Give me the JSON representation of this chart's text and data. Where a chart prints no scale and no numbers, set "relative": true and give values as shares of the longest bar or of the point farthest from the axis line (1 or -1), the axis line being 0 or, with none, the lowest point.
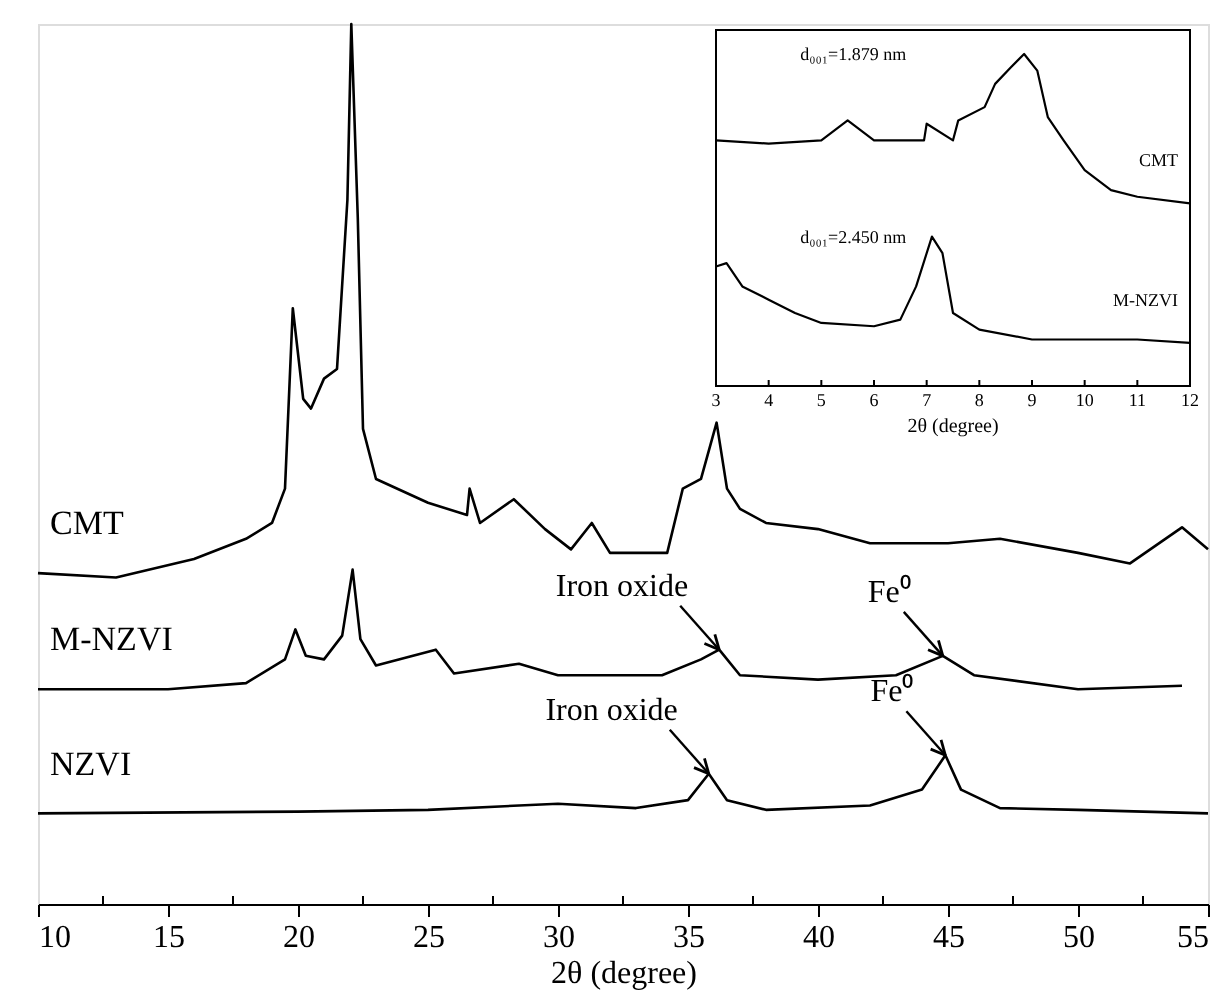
{
  "chart_data": [
    {
      "type": "line",
      "relative": true,
      "xlabel": "2θ (degree)",
      "xlim": [
        10,
        55
      ],
      "xticks": [
        10,
        {
          "value": 12.5,
          "label": null
        },
        15,
        {
          "value": 17.5,
          "label": null
        },
        20,
        {
          "value": 22.5,
          "label": null
        },
        25,
        {
          "value": 27.5,
          "label": null
        },
        30,
        {
          "value": 32.5,
          "label": null
        },
        35,
        {
          "value": 37.5,
          "label": null
        },
        40,
        {
          "value": 42.5,
          "label": null
        },
        45,
        {
          "value": 47.5,
          "label": null
        },
        50,
        {
          "value": 52.5,
          "label": null
        },
        55
      ],
      "grid": false,
      "series": [
        {
          "name": "CMT",
          "color": "#000000",
          "x": [
            10,
            13,
            16,
            18,
            19,
            19.5,
            19.8,
            20.2,
            20.5,
            21,
            21.5,
            21.9,
            22.05,
            22.3,
            22.5,
            23,
            25,
            26.5,
            26.6,
            27,
            28.3,
            29.5,
            30.5,
            31.3,
            32,
            33,
            34.2,
            34.8,
            35.5,
            36.1,
            36.5,
            37,
            38,
            40,
            42,
            45,
            47,
            50,
            52,
            54,
            55
          ],
          "values": [
            0.376,
            0.371,
            0.392,
            0.415,
            0.433,
            0.472,
            0.677,
            0.574,
            0.563,
            0.597,
            0.608,
            0.8,
            1.0,
            0.779,
            0.54,
            0.483,
            0.456,
            0.442,
            0.472,
            0.433,
            0.46,
            0.426,
            0.403,
            0.433,
            0.399,
            0.399,
            0.399,
            0.472,
            0.483,
            0.547,
            0.472,
            0.449,
            0.433,
            0.426,
            0.41,
            0.41,
            0.415,
            0.399,
            0.387,
            0.428,
            0.403
          ]
        },
        {
          "name": "M-NZVI",
          "color": "#000000",
          "x": [
            10,
            15,
            18,
            19.5,
            19.9,
            20.3,
            21,
            21.7,
            22.1,
            22.4,
            23,
            25.3,
            26,
            28.5,
            30,
            32,
            34,
            35.5,
            36.2,
            37,
            40,
            43,
            44.8,
            46,
            50,
            54
          ],
          "values": [
            0.244,
            0.244,
            0.251,
            0.278,
            0.312,
            0.282,
            0.278,
            0.305,
            0.38,
            0.301,
            0.271,
            0.289,
            0.262,
            0.273,
            0.26,
            0.26,
            0.26,
            0.278,
            0.289,
            0.26,
            0.255,
            0.26,
            0.282,
            0.26,
            0.244,
            0.248
          ]
        },
        {
          "name": "NZVI",
          "color": "#000000",
          "x": [
            10,
            20,
            25,
            30,
            33,
            35,
            35.8,
            36.5,
            38,
            42,
            44,
            44.9,
            45.5,
            47,
            50,
            55
          ],
          "values": [
            0.103,
            0.105,
            0.107,
            0.114,
            0.109,
            0.118,
            0.148,
            0.118,
            0.107,
            0.112,
            0.13,
            0.169,
            0.13,
            0.109,
            0.107,
            0.103
          ]
        }
      ],
      "annotations": [
        {
          "text": "Iron oxide",
          "x": 36.2,
          "y": 0.289
        },
        {
          "text": "Fe⁰",
          "x": 44.8,
          "y": 0.282
        },
        {
          "text": "Iron oxide",
          "x": 35.8,
          "y": 0.148
        },
        {
          "text": "Fe⁰",
          "x": 44.9,
          "y": 0.169
        }
      ]
    },
    {
      "type": "line",
      "relative": true,
      "xlabel": "2θ (degree)",
      "xlim": [
        3,
        12
      ],
      "xticks": [
        3,
        4,
        5,
        6,
        7,
        8,
        9,
        10,
        11,
        12
      ],
      "grid": false,
      "series": [
        {
          "name": "CMT",
          "color": "#000000",
          "x": [
            3,
            4,
            5,
            5.5,
            6,
            6.95,
            7,
            7.5,
            7.6,
            8.1,
            8.3,
            8.6,
            8.85,
            9.1,
            9.3,
            9.6,
            10,
            10.5,
            11,
            12
          ],
          "values": [
            0.74,
            0.73,
            0.74,
            0.8,
            0.74,
            0.74,
            0.79,
            0.74,
            0.8,
            0.84,
            0.91,
            0.96,
            1.0,
            0.95,
            0.81,
            0.74,
            0.65,
            0.59,
            0.57,
            0.55
          ]
        },
        {
          "name": "M-NZVI",
          "color": "#000000",
          "x": [
            3,
            3.2,
            3.5,
            4,
            4.5,
            5,
            6,
            6.5,
            6.8,
            7.1,
            7.3,
            7.5,
            8,
            9,
            10,
            11,
            12
          ],
          "values": [
            0.36,
            0.37,
            0.3,
            0.26,
            0.22,
            0.19,
            0.18,
            0.2,
            0.3,
            0.45,
            0.4,
            0.22,
            0.17,
            0.14,
            0.14,
            0.14,
            0.13
          ]
        }
      ],
      "annotations": [
        "d₀₀₁=1.879 nm",
        "d₀₀₁=2.450 nm"
      ]
    }
  ]
}
